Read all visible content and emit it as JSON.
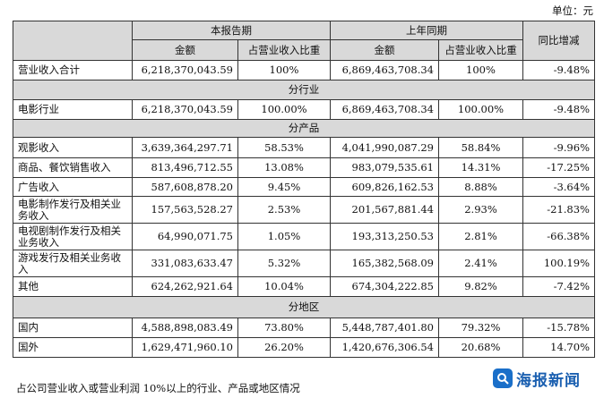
{
  "unit_label": "单位：元",
  "header": {
    "current_period": "本报告期",
    "prior_period": "上年同期",
    "yoy": "同比增减",
    "amount": "金额",
    "share": "占营业收入比重"
  },
  "total": {
    "label": "营业收入合计",
    "cur_amount": "6,218,370,043.59",
    "cur_share": "100%",
    "prev_amount": "6,869,463,708.34",
    "prev_share": "100%",
    "yoy": "-9.48%"
  },
  "sections": {
    "industry": "分行业",
    "product": "分产品",
    "region": "分地区"
  },
  "industry_rows": [
    {
      "label": "电影行业",
      "cur_amount": "6,218,370,043.59",
      "cur_share": "100.00%",
      "prev_amount": "6,869,463,708.34",
      "prev_share": "100.00%",
      "yoy": "-9.48%"
    }
  ],
  "product_rows": [
    {
      "label": "观影收入",
      "cur_amount": "3,639,364,297.71",
      "cur_share": "58.53%",
      "prev_amount": "4,041,990,087.29",
      "prev_share": "58.84%",
      "yoy": "-9.96%"
    },
    {
      "label": "商品、餐饮销售收入",
      "cur_amount": "813,496,712.55",
      "cur_share": "13.08%",
      "prev_amount": "983,079,535.61",
      "prev_share": "14.31%",
      "yoy": "-17.25%"
    },
    {
      "label": "广告收入",
      "cur_amount": "587,608,878.20",
      "cur_share": "9.45%",
      "prev_amount": "609,826,162.53",
      "prev_share": "8.88%",
      "yoy": "-3.64%"
    },
    {
      "label": "电影制作发行及相关业务收入",
      "cur_amount": "157,563,528.27",
      "cur_share": "2.53%",
      "prev_amount": "201,567,881.44",
      "prev_share": "2.93%",
      "yoy": "-21.83%"
    },
    {
      "label": "电视剧制作发行及相关业务收入",
      "cur_amount": "64,990,071.75",
      "cur_share": "1.05%",
      "prev_amount": "193,313,250.53",
      "prev_share": "2.81%",
      "yoy": "-66.38%"
    },
    {
      "label": "游戏发行及相关业务收入",
      "cur_amount": "331,083,633.47",
      "cur_share": "5.32%",
      "prev_amount": "165,382,568.09",
      "prev_share": "2.41%",
      "yoy": "100.19%"
    },
    {
      "label": "其他",
      "cur_amount": "624,262,921.64",
      "cur_share": "10.04%",
      "prev_amount": "674,304,222.85",
      "prev_share": "9.82%",
      "yoy": "-7.42%"
    }
  ],
  "region_rows": [
    {
      "label": "国内",
      "cur_amount": "4,588,898,083.49",
      "cur_share": "73.80%",
      "prev_amount": "5,448,787,401.80",
      "prev_share": "79.32%",
      "yoy": "-15.78%"
    },
    {
      "label": "国外",
      "cur_amount": "1,629,471,960.10",
      "cur_share": "26.20%",
      "prev_amount": "1,420,676,306.54",
      "prev_share": "20.68%",
      "yoy": "14.70%"
    }
  ],
  "bottom_note": "占公司营业收入或营业利润 10%以上的行业、产品或地区情况",
  "watermark": {
    "text": "海报新闻",
    "icon": "news-app-icon"
  }
}
